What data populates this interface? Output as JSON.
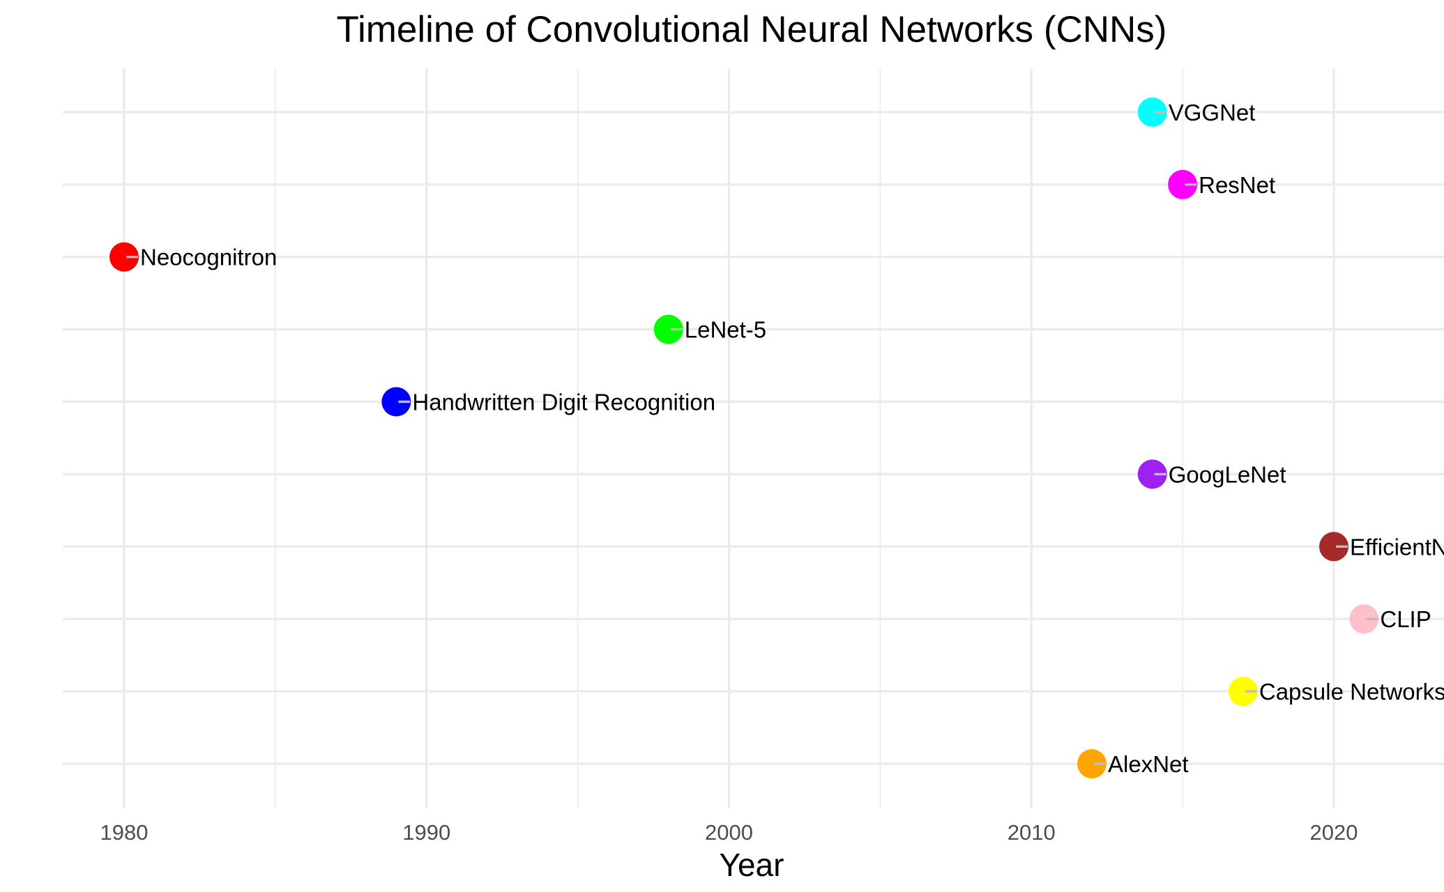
{
  "chart_data": {
    "type": "scatter",
    "title": "Timeline of Convolutional Neural Networks (CNNs)",
    "xlabel": "Year",
    "ylabel": "",
    "xlim": [
      1978,
      2023
    ],
    "x_ticks": [
      1980,
      1990,
      2000,
      2010,
      2020
    ],
    "grid": true,
    "legend": "none",
    "categories": [
      "AlexNet",
      "Capsule Networks",
      "CLIP",
      "EfficientNet",
      "GoogLeNet",
      "Handwritten Digit Recognition",
      "LeNet-5",
      "Neocognitron",
      "ResNet",
      "VGGNet"
    ],
    "points": [
      {
        "label": "Neocognitron",
        "year": 1980,
        "color": "#ff0000"
      },
      {
        "label": "Handwritten Digit Recognition",
        "year": 1989,
        "color": "#0000ff"
      },
      {
        "label": "LeNet-5",
        "year": 1998,
        "color": "#00ff00"
      },
      {
        "label": "AlexNet",
        "year": 2012,
        "color": "#ffa500"
      },
      {
        "label": "VGGNet",
        "year": 2014,
        "color": "#00ffff"
      },
      {
        "label": "GoogLeNet",
        "year": 2014,
        "color": "#a020f0"
      },
      {
        "label": "ResNet",
        "year": 2015,
        "color": "#ff00ff"
      },
      {
        "label": "Capsule Networks",
        "year": 2017,
        "color": "#ffff00"
      },
      {
        "label": "EfficientNet",
        "year": 2020,
        "color": "#a52a2a"
      },
      {
        "label": "CLIP",
        "year": 2021,
        "color": "#ffc0cb"
      }
    ]
  }
}
